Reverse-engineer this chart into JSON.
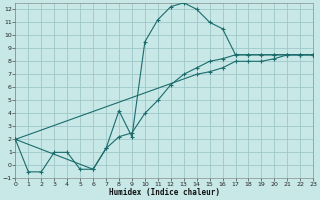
{
  "xlabel": "Humidex (Indice chaleur)",
  "background_color": "#c8e8e8",
  "grid_color": "#a0c8c8",
  "line_color": "#1a6b6b",
  "xlim": [
    0,
    23
  ],
  "ylim": [
    -1,
    12.5
  ],
  "ytick_vals": [
    -1,
    0,
    1,
    2,
    3,
    4,
    5,
    6,
    7,
    8,
    9,
    10,
    11,
    12
  ],
  "xtick_vals": [
    0,
    1,
    2,
    3,
    4,
    5,
    6,
    7,
    8,
    9,
    10,
    11,
    12,
    13,
    14,
    15,
    16,
    17,
    18,
    19,
    20,
    21,
    22,
    23
  ],
  "curve1_x": [
    0,
    1,
    2,
    3,
    4,
    5,
    6,
    7,
    8,
    9,
    10,
    11,
    12,
    13,
    14,
    15,
    16,
    17,
    18,
    19,
    20,
    21,
    22,
    23
  ],
  "curve1_y": [
    2,
    -0.5,
    -0.5,
    1,
    1,
    -0.3,
    -0.3,
    1.3,
    4.2,
    2.2,
    9.5,
    11.2,
    12.2,
    12.5,
    12.0,
    11.0,
    10.5,
    8.5,
    8.5,
    8.5,
    8.5,
    8.5,
    8.5,
    8.5
  ],
  "curve2_x": [
    0,
    6,
    7,
    8,
    9,
    10,
    11,
    12,
    13,
    14,
    15,
    16,
    17,
    18,
    19,
    20,
    21,
    22,
    23
  ],
  "curve2_y": [
    2,
    -0.3,
    1.3,
    2.2,
    2.5,
    4.0,
    5.0,
    6.2,
    7.0,
    7.5,
    8.0,
    8.2,
    8.5,
    8.5,
    8.5,
    8.5,
    8.5,
    8.5,
    8.5
  ],
  "curve3_x": [
    0,
    14,
    15,
    16,
    17,
    18,
    19,
    20,
    21,
    22,
    23
  ],
  "curve3_y": [
    2,
    7.0,
    7.2,
    7.5,
    8.0,
    8.0,
    8.0,
    8.2,
    8.5,
    8.5,
    8.5
  ]
}
